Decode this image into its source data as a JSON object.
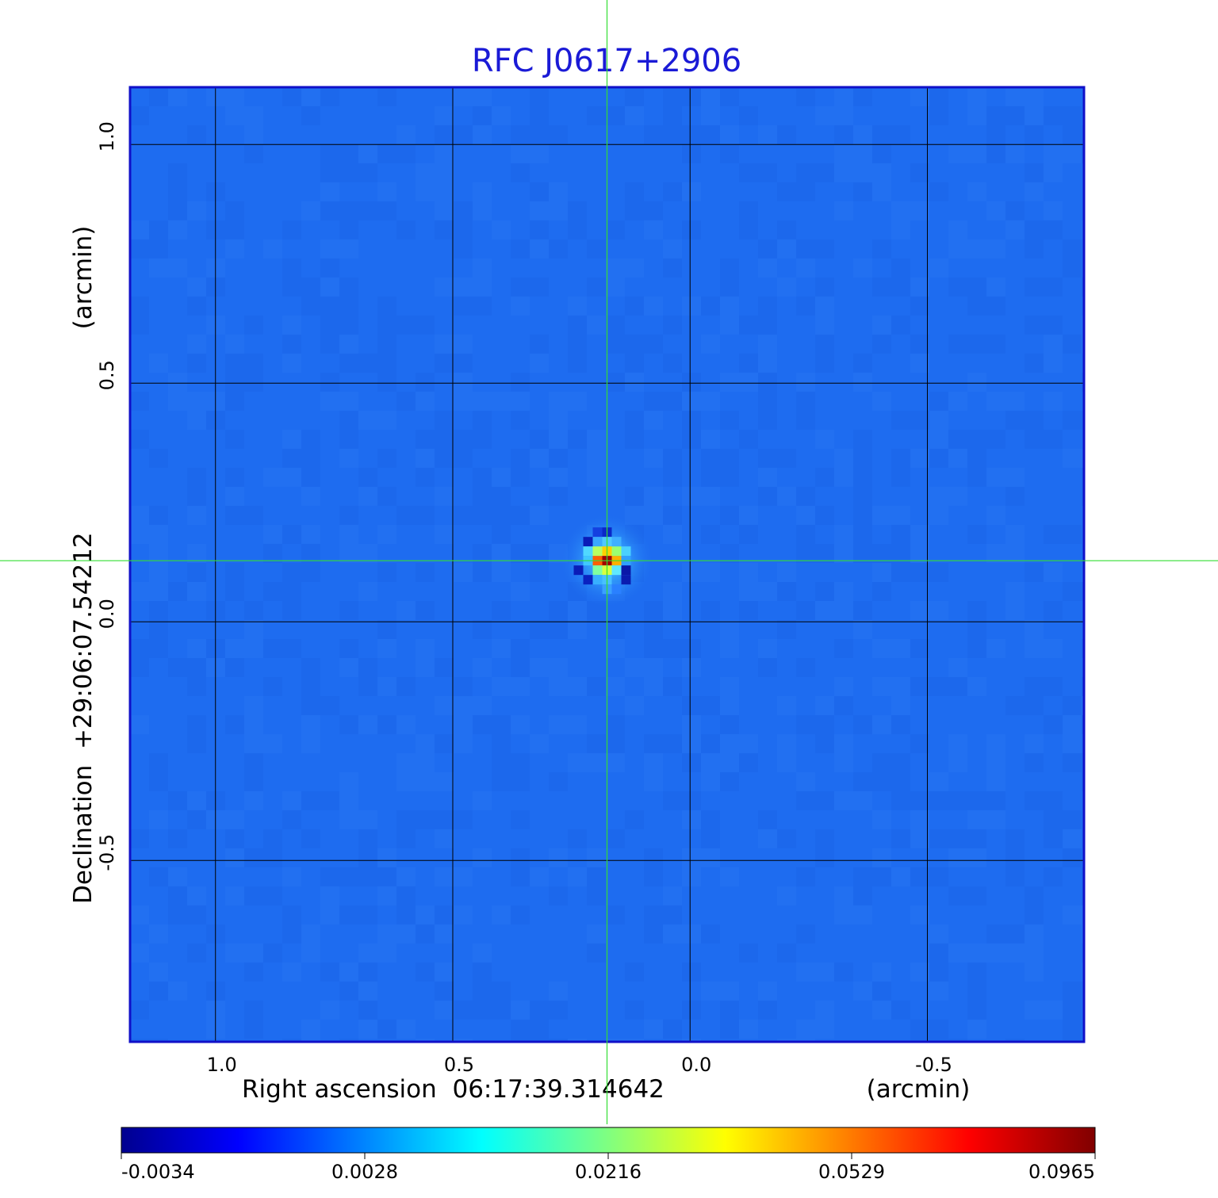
{
  "chart_data": {
    "type": "heatmap",
    "title": "RFC J0617+2906",
    "xlabel": "Right ascension  06:17:39.314642",
    "xunit": "(arcmin)",
    "ylabel": "Declination  +29:06:07.54212",
    "yunit": "(arcmin)",
    "x_ticks": [
      1.0,
      0.5,
      0.0,
      -0.5
    ],
    "x_tick_labels": [
      "1.0",
      "0.5",
      "0.0",
      "-0.5"
    ],
    "y_ticks": [
      1.0,
      0.5,
      0.0,
      -0.5
    ],
    "y_tick_labels": [
      "1.0",
      "0.5",
      "0.0",
      "-0.5"
    ],
    "xlim": [
      1.18,
      -0.83
    ],
    "ylim": [
      -0.88,
      1.12
    ],
    "grid": true,
    "crosshair": {
      "x": 0.175,
      "y": 0.128
    },
    "source_peak": {
      "x": 0.175,
      "y": 0.128,
      "value": 0.0965
    },
    "background_level": 0.0008,
    "colorbar": {
      "ticks": [
        -0.0034,
        0.0028,
        0.0216,
        0.0529,
        0.0965
      ],
      "tick_labels": [
        "-0.0034",
        "0.0028",
        "0.0216",
        "0.0529",
        "0.0965"
      ],
      "colormap": "jet"
    },
    "colors": {
      "title": "#1a1ad6",
      "frame": "#1010c8",
      "grid": "#000000",
      "crosshair": "#33dd33",
      "background": "#1e6cf0"
    }
  }
}
